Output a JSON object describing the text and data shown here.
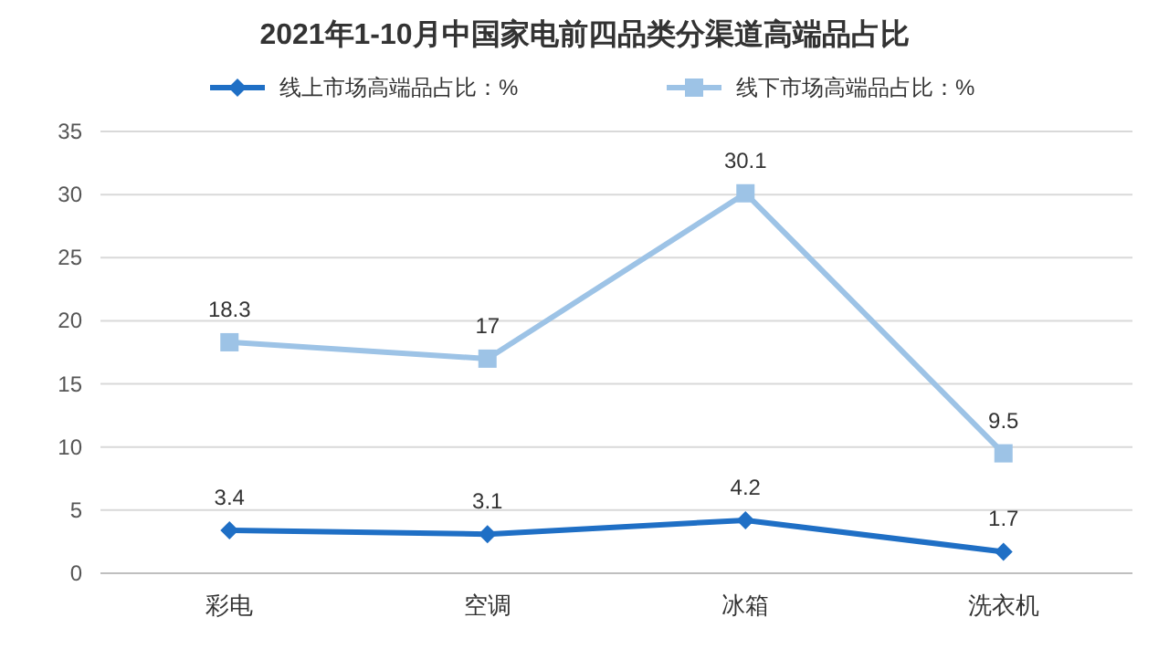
{
  "chart_data": {
    "type": "line",
    "title": "2021年1-10月中国家电前四品类分渠道高端品占比",
    "categories": [
      "彩电",
      "空调",
      "冰箱",
      "洗衣机"
    ],
    "series": [
      {
        "name": "线上市场高端品占比：%",
        "color": "#1f6fc5",
        "marker": "diamond",
        "values": [
          3.4,
          3.1,
          4.2,
          1.7
        ]
      },
      {
        "name": "线下市场高端品占比：%",
        "color": "#9dc3e6",
        "marker": "square",
        "values": [
          18.3,
          17,
          30.1,
          9.5
        ]
      }
    ],
    "ylim": [
      0,
      35
    ],
    "yticks": [
      0,
      5,
      10,
      15,
      20,
      25,
      30,
      35
    ],
    "grid": "y",
    "legend": "top",
    "data_labels": true
  }
}
